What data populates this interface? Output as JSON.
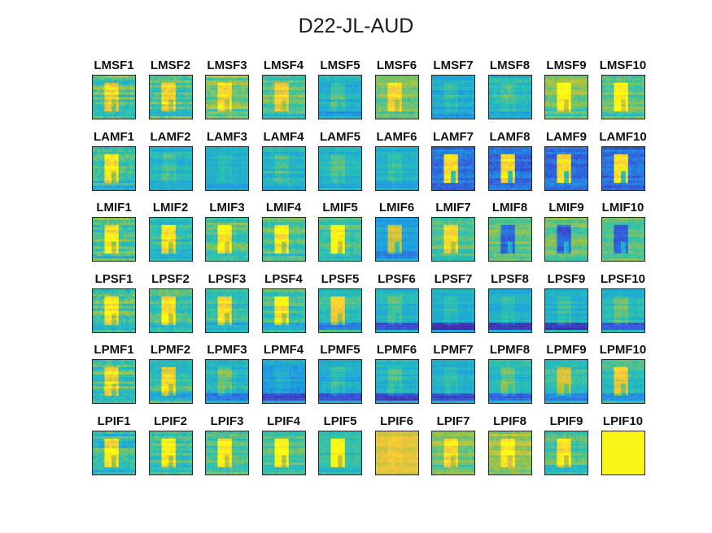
{
  "chart_data": {
    "type": "heatmap",
    "title": "D22-JL-AUD",
    "grid": {
      "rows": 6,
      "cols": 10
    },
    "colormap": "parula",
    "colormap_stops": [
      "#3e26a8",
      "#2d5ede",
      "#1a9ee0",
      "#25c0b2",
      "#a6c23c",
      "#f5c538",
      "#f9fb0e"
    ],
    "panels": [
      {
        "label": "LMSF1",
        "base": 0.55,
        "blob": 0.3,
        "band": -0.05,
        "stripes": 0.22
      },
      {
        "label": "LMSF2",
        "base": 0.55,
        "blob": 0.33,
        "band": -0.05,
        "stripes": 0.2
      },
      {
        "label": "LMSF3",
        "base": 0.62,
        "blob": 0.3,
        "band": -0.05,
        "stripes": 0.18
      },
      {
        "label": "LMSF4",
        "base": 0.56,
        "blob": 0.28,
        "band": -0.05,
        "stripes": 0.18
      },
      {
        "label": "LMSF5",
        "base": 0.42,
        "blob": 0.12,
        "band": -0.08,
        "stripes": 0.15
      },
      {
        "label": "LMSF6",
        "base": 0.6,
        "blob": 0.28,
        "band": -0.05,
        "stripes": 0.15
      },
      {
        "label": "LMSF7",
        "base": 0.4,
        "blob": 0.1,
        "band": -0.08,
        "stripes": 0.15
      },
      {
        "label": "LMSF8",
        "base": 0.46,
        "blob": 0.08,
        "band": -0.05,
        "stripes": 0.15
      },
      {
        "label": "LMSF9",
        "base": 0.62,
        "blob": 0.4,
        "band": -0.05,
        "stripes": 0.15
      },
      {
        "label": "LMSF10",
        "base": 0.58,
        "blob": 0.42,
        "band": -0.05,
        "stripes": 0.15
      },
      {
        "label": "LAMF1",
        "base": 0.52,
        "blob": 0.4,
        "band": -0.05,
        "stripes": 0.22
      },
      {
        "label": "LAMF2",
        "base": 0.44,
        "blob": 0.08,
        "band": -0.05,
        "stripes": 0.12
      },
      {
        "label": "LAMF3",
        "base": 0.42,
        "blob": 0.06,
        "band": -0.05,
        "stripes": 0.1
      },
      {
        "label": "LAMF4",
        "base": 0.44,
        "blob": 0.1,
        "band": -0.05,
        "stripes": 0.15
      },
      {
        "label": "LAMF5",
        "base": 0.44,
        "blob": 0.1,
        "band": -0.05,
        "stripes": 0.12
      },
      {
        "label": "LAMF6",
        "base": 0.42,
        "blob": 0.08,
        "band": -0.05,
        "stripes": 0.1
      },
      {
        "label": "LAMF7",
        "base": 0.22,
        "blob": 0.7,
        "band": 0.0,
        "stripes": 0.15
      },
      {
        "label": "LAMF8",
        "base": 0.2,
        "blob": 0.72,
        "band": 0.0,
        "stripes": 0.15
      },
      {
        "label": "LAMF9",
        "base": 0.2,
        "blob": 0.72,
        "band": 0.0,
        "stripes": 0.15
      },
      {
        "label": "LAMF10",
        "base": 0.2,
        "blob": 0.7,
        "band": 0.0,
        "stripes": 0.15
      },
      {
        "label": "LMIF1",
        "base": 0.55,
        "blob": 0.4,
        "band": -0.05,
        "stripes": 0.22
      },
      {
        "label": "LMIF2",
        "base": 0.5,
        "blob": 0.42,
        "band": -0.05,
        "stripes": 0.18
      },
      {
        "label": "LMIF3",
        "base": 0.55,
        "blob": 0.42,
        "band": -0.05,
        "stripes": 0.18
      },
      {
        "label": "LMIF4",
        "base": 0.55,
        "blob": 0.4,
        "band": -0.05,
        "stripes": 0.18
      },
      {
        "label": "LMIF5",
        "base": 0.52,
        "blob": 0.45,
        "band": -0.05,
        "stripes": 0.16
      },
      {
        "label": "LMIF6",
        "base": 0.36,
        "blob": 0.4,
        "band": -0.08,
        "stripes": 0.12
      },
      {
        "label": "LMIF7",
        "base": 0.55,
        "blob": 0.35,
        "band": -0.05,
        "stripes": 0.14
      },
      {
        "label": "LMIF8",
        "base": 0.58,
        "blob": -0.4,
        "band": 0.0,
        "stripes": 0.14
      },
      {
        "label": "LMIF9",
        "base": 0.58,
        "blob": -0.42,
        "band": 0.0,
        "stripes": 0.14
      },
      {
        "label": "LMIF10",
        "base": 0.56,
        "blob": -0.4,
        "band": 0.0,
        "stripes": 0.14
      },
      {
        "label": "LPSF1",
        "base": 0.55,
        "blob": 0.4,
        "band": -0.05,
        "stripes": 0.22
      },
      {
        "label": "LPSF2",
        "base": 0.52,
        "blob": 0.42,
        "band": -0.05,
        "stripes": 0.18
      },
      {
        "label": "LPSF3",
        "base": 0.5,
        "blob": 0.4,
        "band": -0.1,
        "stripes": 0.16
      },
      {
        "label": "LPSF4",
        "base": 0.52,
        "blob": 0.42,
        "band": -0.1,
        "stripes": 0.16
      },
      {
        "label": "LPSF5",
        "base": 0.5,
        "blob": 0.35,
        "band": -0.25,
        "stripes": 0.14
      },
      {
        "label": "LPSF6",
        "base": 0.44,
        "blob": 0.12,
        "band": -0.35,
        "stripes": 0.12
      },
      {
        "label": "LPSF7",
        "base": 0.4,
        "blob": 0.08,
        "band": -0.38,
        "stripes": 0.1
      },
      {
        "label": "LPSF8",
        "base": 0.4,
        "blob": 0.08,
        "band": -0.38,
        "stripes": 0.1
      },
      {
        "label": "LPSF9",
        "base": 0.42,
        "blob": 0.1,
        "band": -0.38,
        "stripes": 0.1
      },
      {
        "label": "LPSF10",
        "base": 0.45,
        "blob": 0.12,
        "band": -0.3,
        "stripes": 0.12
      },
      {
        "label": "LPMF1",
        "base": 0.55,
        "blob": 0.35,
        "band": -0.1,
        "stripes": 0.22
      },
      {
        "label": "LPMF2",
        "base": 0.5,
        "blob": 0.38,
        "band": -0.12,
        "stripes": 0.18
      },
      {
        "label": "LPMF3",
        "base": 0.44,
        "blob": 0.15,
        "band": -0.25,
        "stripes": 0.16
      },
      {
        "label": "LPMF4",
        "base": 0.36,
        "blob": 0.06,
        "band": -0.3,
        "stripes": 0.14
      },
      {
        "label": "LPMF5",
        "base": 0.4,
        "blob": 0.1,
        "band": -0.32,
        "stripes": 0.12
      },
      {
        "label": "LPMF6",
        "base": 0.44,
        "blob": 0.1,
        "band": -0.35,
        "stripes": 0.12
      },
      {
        "label": "LPMF7",
        "base": 0.4,
        "blob": 0.08,
        "band": -0.3,
        "stripes": 0.1
      },
      {
        "label": "LPMF8",
        "base": 0.45,
        "blob": 0.14,
        "band": -0.3,
        "stripes": 0.12
      },
      {
        "label": "LPMF9",
        "base": 0.5,
        "blob": 0.25,
        "band": -0.28,
        "stripes": 0.14
      },
      {
        "label": "LPMF10",
        "base": 0.5,
        "blob": 0.35,
        "band": -0.25,
        "stripes": 0.14
      },
      {
        "label": "LPIF1",
        "base": 0.5,
        "blob": 0.42,
        "band": -0.05,
        "stripes": 0.22
      },
      {
        "label": "LPIF2",
        "base": 0.52,
        "blob": 0.45,
        "band": -0.05,
        "stripes": 0.18
      },
      {
        "label": "LPIF3",
        "base": 0.55,
        "blob": 0.42,
        "band": -0.05,
        "stripes": 0.16
      },
      {
        "label": "LPIF4",
        "base": 0.55,
        "blob": 0.45,
        "band": -0.05,
        "stripes": 0.12
      },
      {
        "label": "LPIF5",
        "base": 0.5,
        "blob": 0.48,
        "band": -0.05,
        "stripes": 0.1
      },
      {
        "label": "LPIF6",
        "base": 0.78,
        "blob": 0.05,
        "band": 0.0,
        "stripes": 0.12
      },
      {
        "label": "LPIF7",
        "base": 0.62,
        "blob": 0.3,
        "band": -0.05,
        "stripes": 0.16
      },
      {
        "label": "LPIF8",
        "base": 0.66,
        "blob": 0.3,
        "band": -0.05,
        "stripes": 0.16
      },
      {
        "label": "LPIF9",
        "base": 0.55,
        "blob": 0.38,
        "band": -0.05,
        "stripes": 0.14
      },
      {
        "label": "LPIF10",
        "base": 0.98,
        "blob": 0.0,
        "band": 0.0,
        "stripes": 0.0
      }
    ]
  }
}
